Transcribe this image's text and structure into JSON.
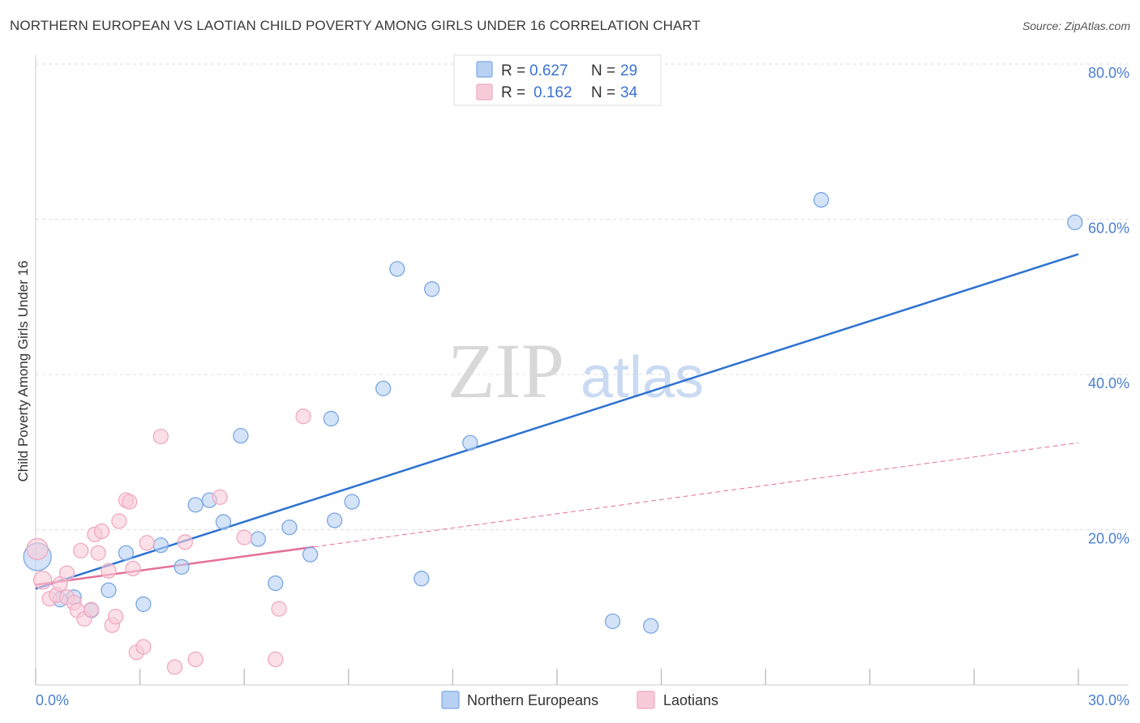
{
  "chart_data": {
    "type": "scatter",
    "title": "NORTHERN EUROPEAN VS LAOTIAN CHILD POVERTY AMONG GIRLS UNDER 16 CORRELATION CHART",
    "source": "Source: ZipAtlas.com",
    "ylabel": "Child Poverty Among Girls Under 16",
    "xlim": [
      0,
      30
    ],
    "ylim": [
      0,
      80
    ],
    "x_tick_labels": [
      "0.0%",
      "30.0%"
    ],
    "y_ticks": [
      {
        "value": 20,
        "label": "20.0%"
      },
      {
        "value": 40,
        "label": "40.0%"
      },
      {
        "value": 60,
        "label": "60.0%"
      },
      {
        "value": 80,
        "label": "80.0%"
      }
    ],
    "watermark": {
      "part1": "ZIP",
      "part2": "atlas"
    },
    "legend": [
      {
        "r_label": "R =",
        "r_value": "0.627",
        "n_label": "N =",
        "n_value": "29"
      },
      {
        "r_label": "R =",
        "r_value": "0.162",
        "n_label": "N =",
        "n_value": "34"
      }
    ],
    "series": [
      {
        "name": "Northern Europeans",
        "color": "#7aa7e4",
        "fill": "#b8d1f2",
        "line_color": "#2d72d2",
        "trend": {
          "x": [
            0,
            30
          ],
          "y": [
            12.4,
            55.5
          ],
          "dashed_from": null
        },
        "points": [
          {
            "x": 0.05,
            "y": 16.5,
            "size": 34
          },
          {
            "x": 0.7,
            "y": 11.0,
            "size": 18
          },
          {
            "x": 1.1,
            "y": 11.3,
            "size": 18
          },
          {
            "x": 1.6,
            "y": 9.6,
            "size": 18
          },
          {
            "x": 2.1,
            "y": 12.2,
            "size": 18
          },
          {
            "x": 2.6,
            "y": 17.0,
            "size": 18
          },
          {
            "x": 3.1,
            "y": 10.4,
            "size": 18
          },
          {
            "x": 3.6,
            "y": 18.0,
            "size": 18
          },
          {
            "x": 4.2,
            "y": 15.2,
            "size": 18
          },
          {
            "x": 4.6,
            "y": 23.2,
            "size": 18
          },
          {
            "x": 5.0,
            "y": 23.8,
            "size": 18
          },
          {
            "x": 5.4,
            "y": 21.0,
            "size": 18
          },
          {
            "x": 5.9,
            "y": 32.1,
            "size": 18
          },
          {
            "x": 6.4,
            "y": 18.8,
            "size": 18
          },
          {
            "x": 6.9,
            "y": 13.1,
            "size": 18
          },
          {
            "x": 7.3,
            "y": 20.3,
            "size": 18
          },
          {
            "x": 7.9,
            "y": 16.8,
            "size": 18
          },
          {
            "x": 8.5,
            "y": 34.3,
            "size": 18
          },
          {
            "x": 8.6,
            "y": 21.2,
            "size": 18
          },
          {
            "x": 9.1,
            "y": 23.6,
            "size": 18
          },
          {
            "x": 10.0,
            "y": 38.2,
            "size": 18
          },
          {
            "x": 10.4,
            "y": 53.6,
            "size": 18
          },
          {
            "x": 11.1,
            "y": 13.7,
            "size": 18
          },
          {
            "x": 11.4,
            "y": 51.0,
            "size": 18
          },
          {
            "x": 12.5,
            "y": 31.2,
            "size": 18
          },
          {
            "x": 16.6,
            "y": 8.2,
            "size": 18
          },
          {
            "x": 17.7,
            "y": 7.6,
            "size": 18
          },
          {
            "x": 22.6,
            "y": 62.5,
            "size": 18
          },
          {
            "x": 29.9,
            "y": 59.6,
            "size": 18
          }
        ]
      },
      {
        "name": "Laotians",
        "color": "#f1a9c1",
        "fill": "#f8cbd9",
        "line_color": "#e5709a",
        "trend": {
          "x": [
            0,
            30
          ],
          "y": [
            12.9,
            31.2
          ],
          "dashed_from": 8.0
        },
        "points": [
          {
            "x": 0.05,
            "y": 17.5,
            "size": 26
          },
          {
            "x": 0.2,
            "y": 13.5,
            "size": 22
          },
          {
            "x": 0.4,
            "y": 11.1,
            "size": 18
          },
          {
            "x": 0.6,
            "y": 11.6,
            "size": 18
          },
          {
            "x": 0.7,
            "y": 13.0,
            "size": 18
          },
          {
            "x": 0.9,
            "y": 11.3,
            "size": 18
          },
          {
            "x": 0.9,
            "y": 14.4,
            "size": 18
          },
          {
            "x": 1.1,
            "y": 10.6,
            "size": 18
          },
          {
            "x": 1.2,
            "y": 9.6,
            "size": 18
          },
          {
            "x": 1.3,
            "y": 17.3,
            "size": 18
          },
          {
            "x": 1.4,
            "y": 8.5,
            "size": 18
          },
          {
            "x": 1.6,
            "y": 9.7,
            "size": 18
          },
          {
            "x": 1.7,
            "y": 19.4,
            "size": 18
          },
          {
            "x": 1.8,
            "y": 17.0,
            "size": 18
          },
          {
            "x": 1.9,
            "y": 19.8,
            "size": 18
          },
          {
            "x": 2.1,
            "y": 14.7,
            "size": 18
          },
          {
            "x": 2.2,
            "y": 7.7,
            "size": 18
          },
          {
            "x": 2.3,
            "y": 8.8,
            "size": 18
          },
          {
            "x": 2.4,
            "y": 21.1,
            "size": 18
          },
          {
            "x": 2.6,
            "y": 23.8,
            "size": 18
          },
          {
            "x": 2.7,
            "y": 23.6,
            "size": 18
          },
          {
            "x": 2.8,
            "y": 15.0,
            "size": 18
          },
          {
            "x": 2.9,
            "y": 4.2,
            "size": 18
          },
          {
            "x": 3.1,
            "y": 4.9,
            "size": 18
          },
          {
            "x": 3.2,
            "y": 18.3,
            "size": 18
          },
          {
            "x": 3.6,
            "y": 32.0,
            "size": 18
          },
          {
            "x": 4.0,
            "y": 2.3,
            "size": 18
          },
          {
            "x": 4.3,
            "y": 18.4,
            "size": 18
          },
          {
            "x": 4.6,
            "y": 3.3,
            "size": 18
          },
          {
            "x": 5.3,
            "y": 24.2,
            "size": 18
          },
          {
            "x": 6.0,
            "y": 19.0,
            "size": 18
          },
          {
            "x": 6.9,
            "y": 3.3,
            "size": 18
          },
          {
            "x": 7.0,
            "y": 9.8,
            "size": 18
          },
          {
            "x": 7.7,
            "y": 34.6,
            "size": 18
          }
        ]
      }
    ]
  }
}
